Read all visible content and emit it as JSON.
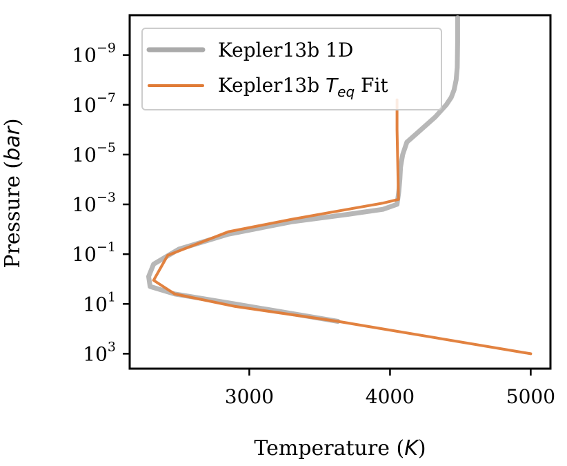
{
  "chart_data": {
    "type": "line",
    "title": "",
    "xlabel": {
      "prefix": "Temperature (",
      "italic": "K",
      "suffix": ")"
    },
    "ylabel": {
      "prefix": "Pressure (",
      "italic": "bar",
      "suffix": ")"
    },
    "xlim": [
      2150,
      5140
    ],
    "ylim_log10": [
      3.6,
      -10.6
    ],
    "y_inverted": true,
    "y_scale": "log",
    "x_ticks": [
      3000,
      4000,
      5000
    ],
    "x_tick_labels": [
      "3000",
      "4000",
      "5000"
    ],
    "y_ticks": [
      {
        "value": -9,
        "base": "10",
        "exp": "−9"
      },
      {
        "value": -7,
        "base": "10",
        "exp": "−7"
      },
      {
        "value": -5,
        "base": "10",
        "exp": "−5"
      },
      {
        "value": -3,
        "base": "10",
        "exp": "−3"
      },
      {
        "value": -1,
        "base": "10",
        "exp": "−1"
      },
      {
        "value": 1,
        "base": "10",
        "exp": "1"
      },
      {
        "value": 3,
        "base": "10",
        "exp": "3"
      }
    ],
    "grid": false,
    "legend_position": "top-left",
    "series": [
      {
        "name": "Kepler13b 1D",
        "legend_label": {
          "prefix": "Kepler13b 1D",
          "italic": "",
          "sub": "",
          "suffix": ""
        },
        "color": "#aaaaaa",
        "style": "thick",
        "x": [
          4480,
          4480,
          4478,
          4470,
          4455,
          4435,
          4400,
          4320,
          4180,
          4120,
          4090,
          4075,
          4070,
          4062,
          4055,
          4050,
          3950,
          3700,
          3300,
          2850,
          2500,
          2320,
          2285,
          2295,
          2470,
          2900,
          3630
        ],
        "log_p": [
          -10.5,
          -9.5,
          -8.5,
          -8.0,
          -7.6,
          -7.3,
          -7.0,
          -6.5,
          -5.8,
          -5.5,
          -5.0,
          -4.5,
          -4.0,
          -3.5,
          -3.2,
          -3.0,
          -2.8,
          -2.6,
          -2.3,
          -1.8,
          -1.2,
          -0.6,
          -0.1,
          0.3,
          0.6,
          1.0,
          1.7
        ]
      },
      {
        "name": "Kepler13b T_eq Fit",
        "legend_label": {
          "prefix": "Kepler13b ",
          "italic": "T",
          "sub": "eq",
          "suffix": " Fit"
        },
        "color": "#e07b36",
        "style": "normal",
        "x": [
          4050,
          4050,
          4060,
          3950,
          3700,
          3300,
          2850,
          2420,
          2320,
          2470,
          2900,
          3630,
          5000
        ],
        "log_p": [
          -7.2,
          -6.0,
          -3.2,
          -3.05,
          -2.8,
          -2.4,
          -1.9,
          -0.95,
          0.05,
          0.6,
          1.1,
          1.7,
          3.0
        ]
      }
    ]
  }
}
